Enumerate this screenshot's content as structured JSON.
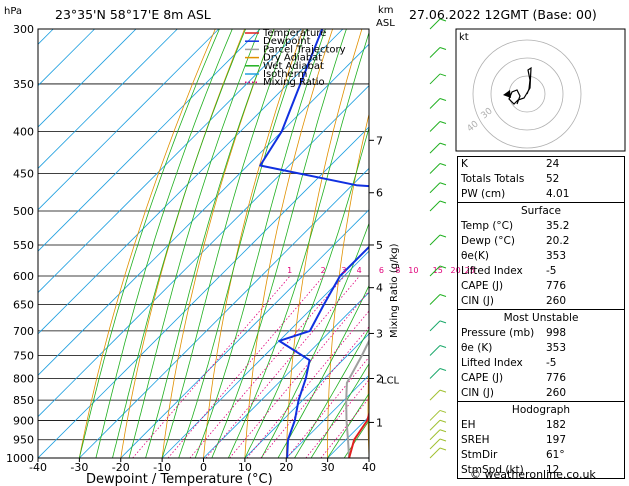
{
  "header": {
    "pressure_unit": "hPa",
    "location": "23°35'N  58°17'E  8m  ASL",
    "height_unit_line1": "km",
    "height_unit_line2": "ASL",
    "datetime": "27.06.2022  12GMT  (Base: 00)"
  },
  "legend": [
    {
      "label": "Temperature",
      "color": "#e02020",
      "style": "solid"
    },
    {
      "label": "Dewpoint",
      "color": "#1030e0",
      "style": "solid"
    },
    {
      "label": "Parcel Trajectory",
      "color": "#a0a0a0",
      "style": "solid"
    },
    {
      "label": "Dry Adiabat",
      "color": "#e09000",
      "style": "solid"
    },
    {
      "label": "Wet Adiabat",
      "color": "#20b020",
      "style": "solid"
    },
    {
      "label": "Isotherm",
      "color": "#20a0e0",
      "style": "solid"
    },
    {
      "label": "Mixing Ratio",
      "color": "#e0007a",
      "style": "dotted"
    }
  ],
  "chart_data": {
    "type": "skew-t log-p",
    "xlabel": "Dewpoint / Temperature (°C)",
    "y2label": "Mixing Ratio (g/kg)",
    "x_ticks": [
      -40,
      -30,
      -20,
      -10,
      0,
      10,
      20,
      30,
      40
    ],
    "xlim": [
      -40,
      40
    ],
    "pressure_levels": [
      300,
      350,
      400,
      450,
      500,
      550,
      600,
      650,
      700,
      750,
      800,
      850,
      900,
      950,
      1000
    ],
    "ylim_hpa": [
      1000,
      300
    ],
    "height_ticks_km": [
      "7",
      "6",
      "5",
      "4",
      "3",
      "2",
      "1"
    ],
    "lcl_label": "LCL",
    "mixing_ratio_labels": [
      "1",
      "2",
      "3",
      "4",
      "6",
      "8",
      "10",
      "15",
      "20",
      "25"
    ],
    "temperature": [
      {
        "p": 1000,
        "t": 35.2
      },
      {
        "p": 950,
        "t": 32.0
      },
      {
        "p": 900,
        "t": 30.5
      },
      {
        "p": 850,
        "t": 27.0
      },
      {
        "p": 800,
        "t": 22.5
      },
      {
        "p": 750,
        "t": 19.0
      },
      {
        "p": 700,
        "t": 15.5
      },
      {
        "p": 650,
        "t": 10.0
      },
      {
        "p": 600,
        "t": 4.0
      },
      {
        "p": 550,
        "t": -1.5
      },
      {
        "p": 500,
        "t": -6.5
      },
      {
        "p": 470,
        "t": -10.0
      },
      {
        "p": 455,
        "t": -11.0
      },
      {
        "p": 450,
        "t": -12.5
      },
      {
        "p": 400,
        "t": -19.5
      },
      {
        "p": 350,
        "t": -27.5
      },
      {
        "p": 320,
        "t": -32.5
      }
    ],
    "dewpoint": [
      {
        "p": 1000,
        "t": 20.2
      },
      {
        "p": 950,
        "t": 16.0
      },
      {
        "p": 900,
        "t": 13.0
      },
      {
        "p": 850,
        "t": 9.0
      },
      {
        "p": 800,
        "t": 5.5
      },
      {
        "p": 760,
        "t": 2.0
      },
      {
        "p": 720,
        "t": -10.0
      },
      {
        "p": 700,
        "t": -5.0
      },
      {
        "p": 650,
        "t": -8.0
      },
      {
        "p": 600,
        "t": -11.0
      },
      {
        "p": 550,
        "t": -11.0
      },
      {
        "p": 525,
        "t": -10.0
      },
      {
        "p": 500,
        "t": -12.0
      },
      {
        "p": 470,
        "t": -15.0
      },
      {
        "p": 465,
        "t": -29.0
      },
      {
        "p": 440,
        "t": -57.0
      },
      {
        "p": 400,
        "t": -60.0
      },
      {
        "p": 350,
        "t": -67.0
      },
      {
        "p": 300,
        "t": -75.0
      }
    ],
    "parcel": [
      {
        "p": 1000,
        "t": 35.2
      },
      {
        "p": 950,
        "t": 30.5
      },
      {
        "p": 900,
        "t": 25.5
      },
      {
        "p": 850,
        "t": 20.5
      },
      {
        "p": 810,
        "t": 16.5
      },
      {
        "p": 750,
        "t": 13.5
      },
      {
        "p": 700,
        "t": 10.5
      },
      {
        "p": 650,
        "t": 7.0
      },
      {
        "p": 600,
        "t": 3.5
      },
      {
        "p": 550,
        "t": -0.5
      },
      {
        "p": 500,
        "t": -5.0
      },
      {
        "p": 450,
        "t": -11.0
      },
      {
        "p": 400,
        "t": -17.5
      },
      {
        "p": 350,
        "t": -25.5
      }
    ]
  },
  "hodograph": {
    "label": "kt",
    "ring_labels": [
      "40",
      "30"
    ]
  },
  "indices": [
    {
      "label": "K",
      "value": "24"
    },
    {
      "label": "Totals Totals",
      "value": "52"
    },
    {
      "label": "PW (cm)",
      "value": "4.01"
    }
  ],
  "surface": {
    "title": "Surface",
    "rows": [
      {
        "label": "Temp (°C)",
        "value": "35.2"
      },
      {
        "label": "Dewp (°C)",
        "value": "20.2"
      },
      {
        "label": "θe(K)",
        "value": "353"
      },
      {
        "label": "Lifted Index",
        "value": "-5"
      },
      {
        "label": "CAPE (J)",
        "value": "776"
      },
      {
        "label": "CIN (J)",
        "value": "260"
      }
    ]
  },
  "most_unstable": {
    "title": "Most Unstable",
    "rows": [
      {
        "label": "Pressure (mb)",
        "value": "998"
      },
      {
        "label": "θe (K)",
        "value": "353"
      },
      {
        "label": "Lifted Index",
        "value": "-5"
      },
      {
        "label": "CAPE (J)",
        "value": "776"
      },
      {
        "label": "CIN (J)",
        "value": "260"
      }
    ]
  },
  "hodograph_table": {
    "title": "Hodograph",
    "rows": [
      {
        "label": "EH",
        "value": "182"
      },
      {
        "label": "SREH",
        "value": "197"
      },
      {
        "label": "StmDir",
        "value": "61°"
      },
      {
        "label": "StmSpd (kt)",
        "value": "12"
      }
    ]
  },
  "footer": {
    "copyright": "© weatheronline.co.uk"
  }
}
